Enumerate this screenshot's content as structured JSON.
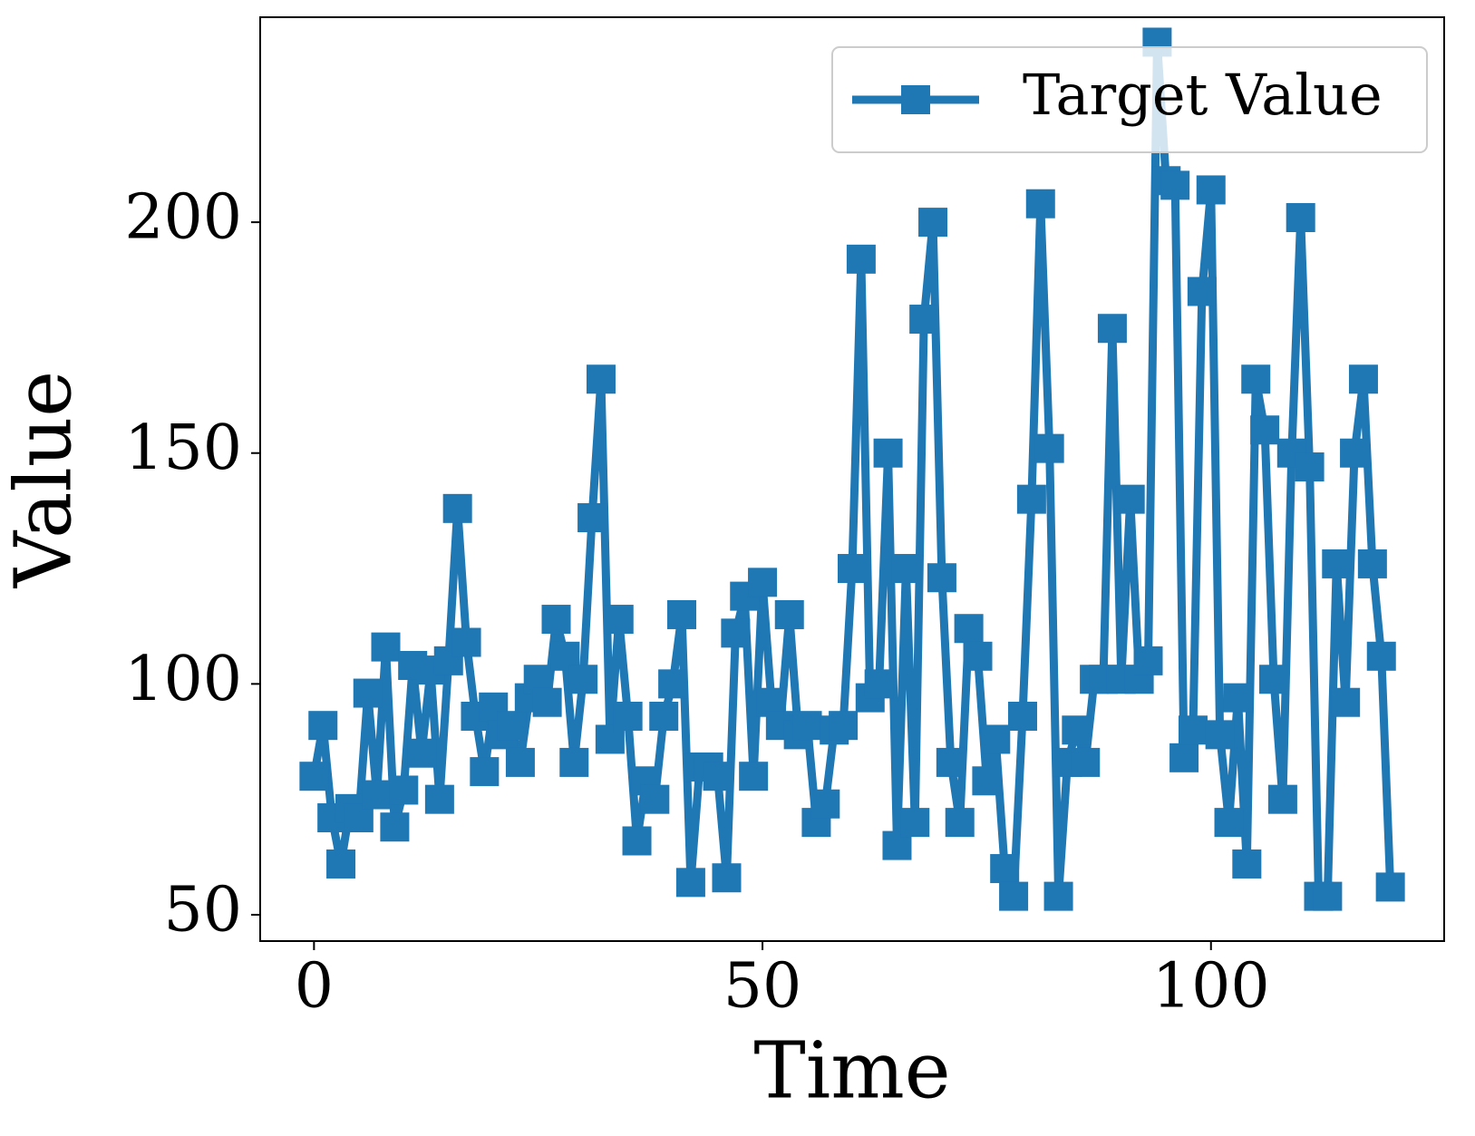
{
  "chart_data": {
    "type": "line",
    "x_label": "Time",
    "y_label": "Value",
    "x": [
      0,
      1,
      2,
      3,
      4,
      5,
      6,
      7,
      8,
      9,
      10,
      11,
      12,
      13,
      14,
      15,
      16,
      17,
      18,
      19,
      20,
      21,
      22,
      23,
      24,
      25,
      26,
      27,
      28,
      29,
      30,
      31,
      32,
      33,
      34,
      35,
      36,
      37,
      38,
      39,
      40,
      41,
      42,
      43,
      44,
      45,
      46,
      47,
      48,
      49,
      50,
      51,
      52,
      53,
      54,
      55,
      56,
      57,
      58,
      59,
      60,
      61,
      62,
      63,
      64,
      65,
      66,
      67,
      68,
      69,
      70,
      71,
      72,
      73,
      74,
      75,
      76,
      77,
      78,
      79,
      80,
      81,
      82,
      83,
      84,
      85,
      86,
      87,
      88,
      89,
      90,
      91,
      92,
      93,
      94,
      95,
      96,
      97,
      98,
      99,
      100,
      101,
      102,
      103,
      104,
      105,
      106,
      107,
      108,
      109,
      110,
      111,
      112,
      113,
      114,
      115,
      116,
      117,
      118,
      119,
      120
    ],
    "series": [
      {
        "name": "Target Value",
        "color": "#1f77b4",
        "values": [
          80,
          91,
          71,
          61,
          73,
          71,
          98,
          76,
          108,
          69,
          77,
          104,
          85,
          103,
          75,
          105,
          138,
          109,
          93,
          81,
          95,
          89,
          91,
          83,
          97,
          101,
          96,
          114,
          106,
          83,
          101,
          136,
          166,
          88,
          114,
          93,
          66,
          79,
          75,
          93,
          100,
          115,
          57,
          82,
          82,
          80,
          58,
          111,
          119,
          80,
          122,
          96,
          91,
          115,
          89,
          91,
          70,
          74,
          90,
          91,
          125,
          192,
          97,
          100,
          150,
          65,
          125,
          70,
          179,
          200,
          123,
          83,
          70,
          112,
          106,
          79,
          88,
          60,
          54,
          93,
          140,
          204,
          151,
          54,
          83,
          90,
          83,
          101,
          101,
          177,
          101,
          140,
          101,
          105,
          239,
          209,
          208,
          84,
          90,
          185,
          207,
          89,
          70,
          97,
          61,
          166,
          155,
          101,
          75,
          150,
          201,
          147,
          54,
          54,
          126,
          96,
          150,
          166,
          126,
          106,
          56
        ]
      }
    ],
    "xlim": [
      -6,
      126
    ],
    "xticks": [
      0,
      50,
      100
    ],
    "ylim": [
      44.3,
      244.4
    ],
    "yticks": [
      50,
      100,
      150,
      200
    ],
    "legend": "upper right"
  }
}
